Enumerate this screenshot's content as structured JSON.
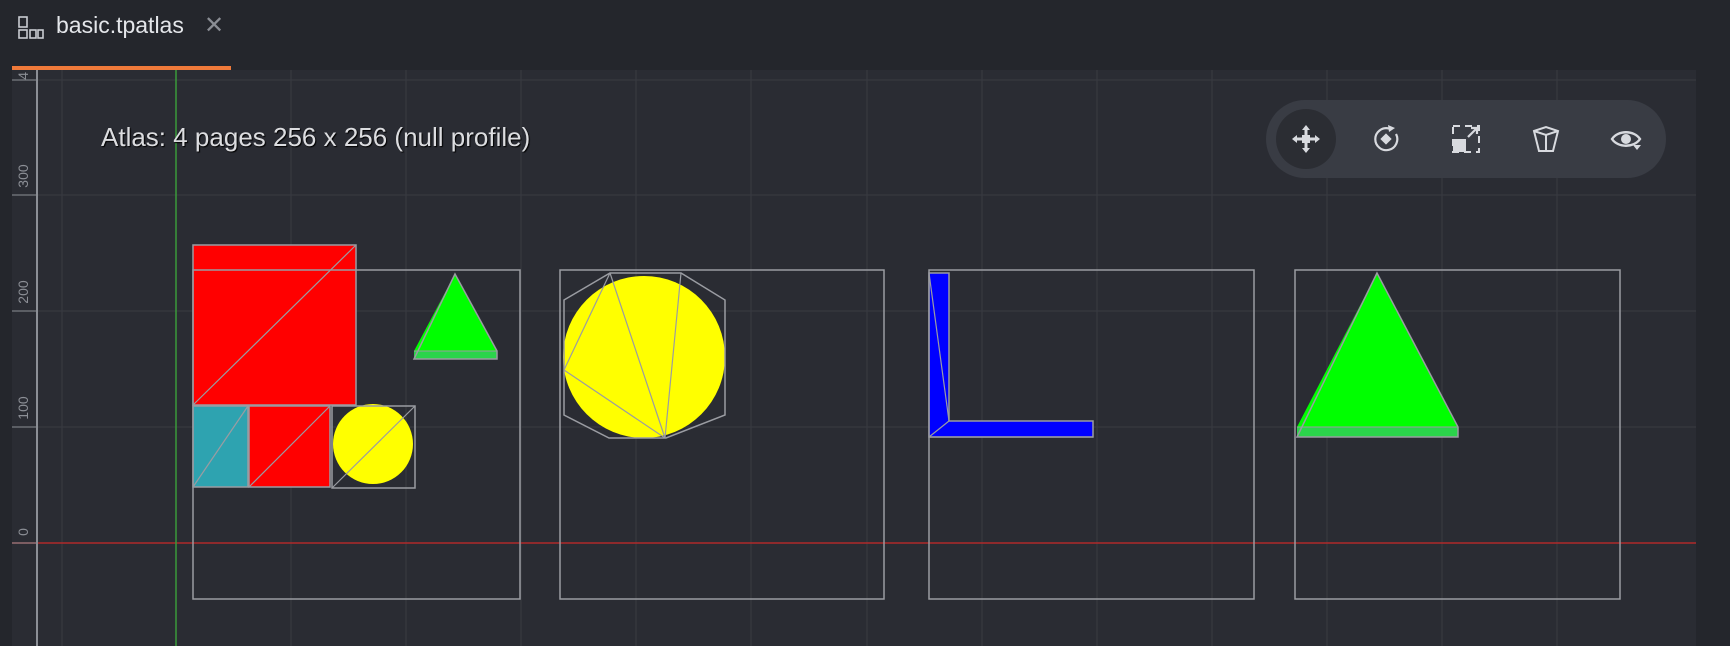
{
  "tab": {
    "title": "basic.tpatlas",
    "close_glyph": "✕",
    "icon": "atlas-layout-icon"
  },
  "viewport": {
    "info_text": "Atlas: 4 pages 256 x 256 (null profile)",
    "ruler_labels": [
      "4",
      "300",
      "200",
      "100",
      "0"
    ],
    "colors": {
      "red": "#ff0000",
      "green": "#00ff00",
      "yellow": "#ffff00",
      "blue": "#0000ff",
      "teal": "#2ea3b0",
      "outline": "#9a9ca2",
      "x_axis": "#b02a2a",
      "y_axis": "#3a9a3a",
      "accent": "#f07a3a"
    }
  },
  "toolbar": {
    "tools": [
      {
        "name": "move-tool",
        "icon": "move-icon",
        "active": true
      },
      {
        "name": "rotate-tool",
        "icon": "rotate-icon",
        "active": false
      },
      {
        "name": "scale-tool",
        "icon": "scale-icon",
        "active": false
      },
      {
        "name": "perspective-tool",
        "icon": "perspective-icon",
        "active": false
      },
      {
        "name": "camera-reset-tool",
        "icon": "visibility-icon",
        "active": false
      }
    ]
  }
}
